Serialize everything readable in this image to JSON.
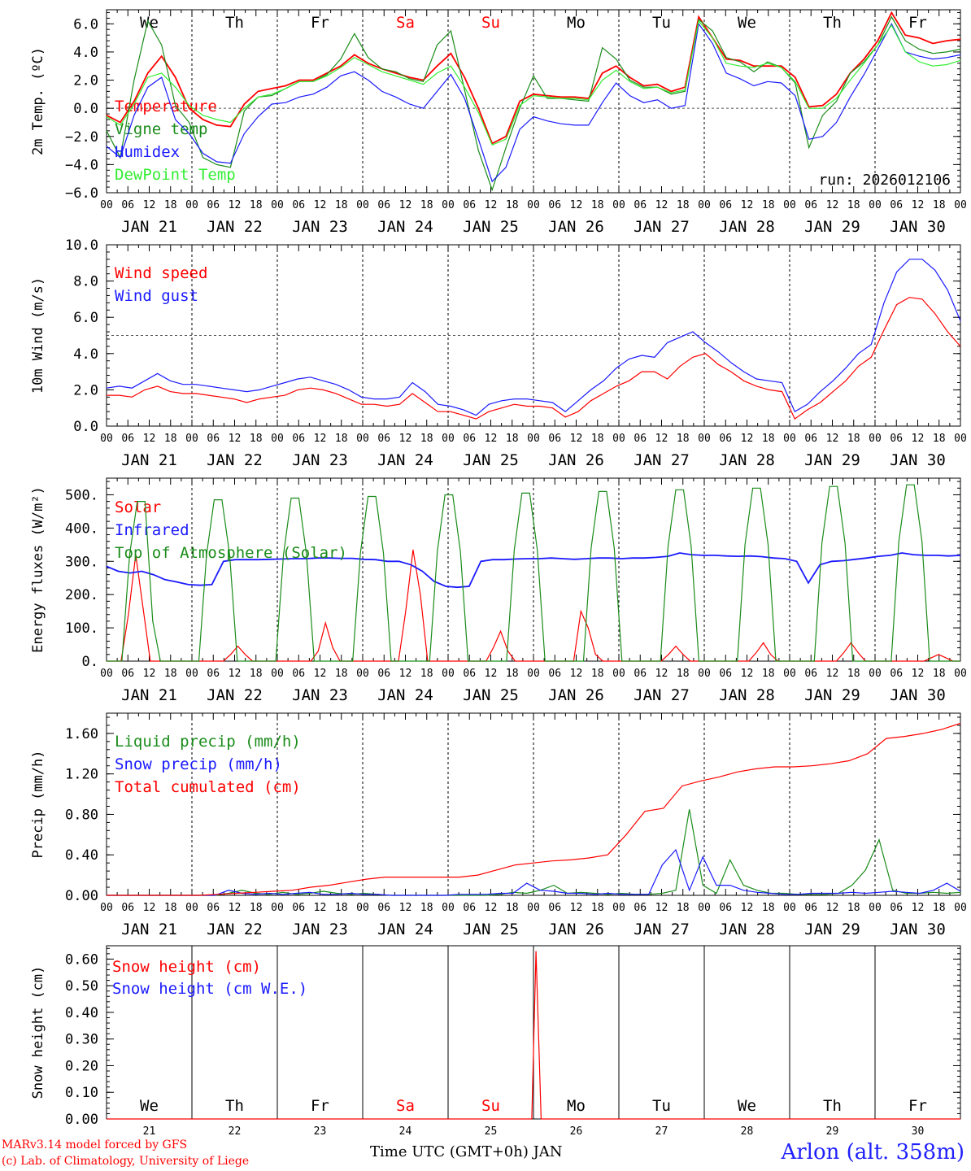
{
  "run_label": "run: 2026012106",
  "x_title": "Time UTC (GMT+0h) JAN",
  "credits": [
    "MARv3.14 model forced by GFS",
    "(c) Lab. of Climatology, University of Liege"
  ],
  "station": "Arlon (alt. 358m)",
  "days": [
    {
      "dow": "We",
      "date": "JAN 21",
      "num": "21",
      "weekend": false
    },
    {
      "dow": "Th",
      "date": "JAN 22",
      "num": "22",
      "weekend": false
    },
    {
      "dow": "Fr",
      "date": "JAN 23",
      "num": "23",
      "weekend": false
    },
    {
      "dow": "Sa",
      "date": "JAN 24",
      "num": "24",
      "weekend": true
    },
    {
      "dow": "Su",
      "date": "JAN 25",
      "num": "25",
      "weekend": true
    },
    {
      "dow": "Mo",
      "date": "JAN 26",
      "num": "26",
      "weekend": false
    },
    {
      "dow": "Tu",
      "date": "JAN 27",
      "num": "27",
      "weekend": false
    },
    {
      "dow": "We",
      "date": "JAN 28",
      "num": "28",
      "weekend": false
    },
    {
      "dow": "Th",
      "date": "JAN 29",
      "num": "29",
      "weekend": false
    },
    {
      "dow": "Fr",
      "date": "JAN 30",
      "num": "30",
      "weekend": false
    }
  ],
  "hour_ticks": [
    "00",
    "06",
    "12",
    "18"
  ],
  "colors": {
    "red": "#ff0000",
    "green": "#1a8c1a",
    "blue": "#1a1aff",
    "lightgreen": "#33ee33",
    "weekend": "#ff0000"
  },
  "chart_data": [
    {
      "type": "line",
      "id": "temp",
      "ylabel": "2m Temp. (ºC)",
      "ylim": [
        -6,
        7
      ],
      "yticks": [
        -6,
        -4,
        -2,
        0,
        2,
        4,
        6
      ],
      "ytick_labels": [
        "−6.0",
        "−4.0",
        "−2.0",
        "0.0",
        "2.0",
        "4.0",
        "6.0"
      ],
      "ref_line": 0,
      "x_hours_step": 6,
      "series": [
        {
          "name": "Temperature",
          "color": "red",
          "values": [
            -0.5,
            -1.0,
            0.5,
            2.5,
            3.7,
            2.2,
            0,
            -0.8,
            -1.2,
            -1.3,
            0.3,
            1.2,
            1.4,
            1.6,
            2.0,
            2.0,
            2.5,
            3.0,
            3.8,
            3.2,
            2.8,
            2.5,
            2.2,
            2.0,
            3.0,
            3.9,
            2.2,
            0.0,
            -2.5,
            -2.0,
            0.5,
            1.0,
            0.9,
            0.8,
            0.8,
            0.7,
            2.5,
            3.0,
            2.2,
            1.6,
            1.7,
            1.2,
            1.5,
            6.5,
            5.0,
            3.5,
            3.4,
            3.0,
            3.0,
            3.0,
            2.2,
            0.1,
            0.2,
            1.0,
            2.5,
            3.5,
            4.8,
            6.8,
            5.2,
            5.0,
            4.6,
            4.8,
            4.9
          ]
        },
        {
          "name": "Vigne temp",
          "color": "green",
          "values": [
            -1.6,
            -3.5,
            2.0,
            6.2,
            4.5,
            0.2,
            -1.0,
            -3.5,
            -4.0,
            -4.2,
            -0.2,
            0.8,
            0.9,
            1.4,
            1.9,
            1.9,
            2.4,
            3.5,
            5.3,
            3.6,
            2.8,
            2.6,
            2.1,
            1.9,
            4.5,
            5.5,
            1.3,
            -3.0,
            -5.8,
            -2.8,
            0.0,
            2.3,
            0.7,
            0.7,
            0.6,
            0.5,
            4.3,
            3.5,
            2.0,
            1.5,
            1.5,
            1.0,
            1.2,
            6.3,
            5.5,
            3.6,
            3.3,
            2.6,
            3.3,
            2.9,
            1.8,
            -2.8,
            -0.5,
            0.5,
            2.5,
            3.3,
            4.5,
            6.5,
            4.8,
            4.2,
            3.9,
            4.0,
            4.2
          ]
        },
        {
          "name": "Humidex",
          "color": "blue",
          "values": [
            -2.7,
            -3.5,
            -0.5,
            1.5,
            2.2,
            -0.8,
            -1.8,
            -3.2,
            -3.8,
            -3.9,
            -1.8,
            -0.6,
            0.3,
            0.4,
            0.8,
            1.0,
            1.5,
            2.3,
            2.6,
            2.0,
            1.2,
            0.8,
            0.3,
            0.0,
            1.2,
            2.4,
            0.7,
            -2.2,
            -5.2,
            -4.2,
            -1.5,
            -0.6,
            -0.9,
            -1.1,
            -1.2,
            -1.2,
            0.4,
            1.8,
            0.9,
            0.4,
            0.6,
            0.0,
            0.2,
            6.0,
            4.6,
            2.5,
            2.1,
            1.6,
            1.9,
            1.8,
            0.9,
            -2.2,
            -2.0,
            -1.0,
            0.8,
            2.4,
            4.2,
            6.0,
            4.0,
            3.7,
            3.5,
            3.6,
            3.8
          ]
        },
        {
          "name": "DewPoint Temp",
          "color": "lightgreen",
          "values": [
            -0.6,
            -1.2,
            0.3,
            2.2,
            2.5,
            1.5,
            0.2,
            -0.5,
            -0.8,
            -1.0,
            0.0,
            0.8,
            1.0,
            1.4,
            1.9,
            1.9,
            2.3,
            2.9,
            3.6,
            3.1,
            2.6,
            2.3,
            2.0,
            1.7,
            2.5,
            3.0,
            1.5,
            -0.3,
            -2.6,
            -2.2,
            0.2,
            0.9,
            0.8,
            0.7,
            0.7,
            0.6,
            2.0,
            2.7,
            1.9,
            1.4,
            1.5,
            1.1,
            1.3,
            6.2,
            5.0,
            3.2,
            3.0,
            2.9,
            3.2,
            2.9,
            1.9,
            0.0,
            0.0,
            0.7,
            2.0,
            3.2,
            4.5,
            5.9,
            4.0,
            3.3,
            3.0,
            3.1,
            3.4
          ]
        }
      ]
    },
    {
      "type": "line",
      "id": "wind",
      "ylabel": "10m Wind (m/s)",
      "ylim": [
        0,
        10
      ],
      "yticks": [
        0,
        2,
        4,
        6,
        8,
        10
      ],
      "ytick_labels": [
        "0.0",
        "2.0",
        "4.0",
        "6.0",
        "8.0",
        "10.0"
      ],
      "ref_line": 5,
      "x_hours_step": 6,
      "series": [
        {
          "name": "Wind speed",
          "color": "red",
          "values": [
            1.7,
            1.7,
            1.6,
            2.0,
            2.2,
            1.9,
            1.8,
            1.8,
            1.7,
            1.6,
            1.5,
            1.3,
            1.5,
            1.6,
            1.7,
            2.0,
            2.1,
            2.0,
            1.8,
            1.5,
            1.2,
            1.2,
            1.1,
            1.2,
            1.8,
            1.3,
            0.8,
            0.8,
            0.6,
            0.4,
            0.8,
            1.0,
            1.2,
            1.1,
            1.1,
            1.0,
            0.5,
            0.8,
            1.4,
            1.8,
            2.2,
            2.5,
            3.0,
            3.0,
            2.6,
            3.3,
            3.8,
            4.0,
            3.4,
            3.0,
            2.5,
            2.2,
            2.0,
            1.9,
            0.4,
            0.9,
            1.3,
            1.9,
            2.5,
            3.3,
            3.8,
            5.3,
            6.7,
            7.1,
            7.0,
            6.2,
            5.2,
            4.4
          ]
        },
        {
          "name": "Wind gust",
          "color": "blue",
          "values": [
            2.1,
            2.2,
            2.1,
            2.5,
            2.9,
            2.5,
            2.3,
            2.3,
            2.2,
            2.1,
            2.0,
            1.9,
            2.0,
            2.2,
            2.4,
            2.6,
            2.7,
            2.5,
            2.3,
            2.0,
            1.6,
            1.5,
            1.5,
            1.6,
            2.4,
            1.9,
            1.2,
            1.1,
            0.9,
            0.6,
            1.2,
            1.4,
            1.5,
            1.5,
            1.4,
            1.3,
            0.8,
            1.4,
            2.0,
            2.5,
            3.2,
            3.7,
            3.9,
            3.8,
            4.6,
            4.9,
            5.2,
            4.6,
            4.1,
            3.5,
            3.0,
            2.6,
            2.5,
            2.4,
            0.8,
            1.2,
            1.9,
            2.5,
            3.2,
            4.0,
            4.5,
            6.8,
            8.5,
            9.2,
            9.2,
            8.6,
            7.5,
            5.8
          ]
        }
      ]
    },
    {
      "type": "line",
      "id": "energy",
      "ylabel": "Energy fluxes (W/m²)",
      "ylim": [
        0,
        550
      ],
      "yticks": [
        0,
        100,
        200,
        300,
        400,
        500
      ],
      "ytick_labels": [
        "0.",
        "100.",
        "200.",
        "300.",
        "400.",
        "500."
      ],
      "x_hours_step": 3,
      "series": [
        {
          "name": "Solar",
          "color": "red",
          "values": [
            0,
            0,
            0,
            140,
            320,
            160,
            0,
            0,
            0,
            0,
            0,
            0,
            0,
            0,
            0,
            0,
            0,
            20,
            45,
            20,
            0,
            0,
            0,
            0,
            0,
            0,
            0,
            0,
            0,
            30,
            115,
            40,
            0,
            0,
            0,
            0,
            0,
            0,
            0,
            0,
            0,
            150,
            335,
            200,
            0,
            0,
            0,
            0,
            0,
            0,
            0,
            0,
            0,
            40,
            90,
            30,
            0,
            0,
            0,
            0,
            0,
            0,
            0,
            0,
            0,
            150,
            100,
            20,
            0,
            0,
            0,
            0,
            0,
            0,
            0,
            0,
            0,
            20,
            45,
            20,
            0,
            0,
            0,
            0,
            0,
            0,
            0,
            0,
            0,
            25,
            55,
            20,
            0,
            0,
            0,
            0,
            0,
            0,
            0,
            0,
            0,
            25,
            55,
            25,
            0,
            0,
            0,
            0,
            0,
            0,
            0,
            0,
            0,
            10,
            20,
            10,
            0,
            0
          ]
        },
        {
          "name": "Infrared",
          "color": "blue",
          "values": [
            285,
            270,
            265,
            270,
            260,
            245,
            238,
            230,
            228,
            230,
            300,
            305,
            305,
            305,
            306,
            307,
            308,
            308,
            310,
            310,
            309,
            309,
            306,
            305,
            300,
            300,
            290,
            270,
            240,
            225,
            222,
            225,
            300,
            305,
            305,
            307,
            308,
            308,
            310,
            308,
            306,
            308,
            310,
            310,
            308,
            310,
            310,
            312,
            315,
            325,
            320,
            318,
            318,
            316,
            315,
            316,
            314,
            310,
            308,
            300,
            235,
            290,
            300,
            302,
            306,
            310,
            315,
            318,
            325,
            320,
            318,
            318,
            316,
            318
          ]
        },
        {
          "name": "Top of Atmosphere (Solar)",
          "color": "green",
          "values": [
            0,
            0,
            0,
            320,
            480,
            480,
            120,
            0,
            0,
            0,
            0,
            0,
            0,
            320,
            485,
            485,
            320,
            0,
            0,
            0,
            0,
            0,
            0,
            320,
            490,
            490,
            320,
            0,
            0,
            0,
            0,
            0,
            0,
            325,
            495,
            495,
            325,
            0,
            0,
            0,
            0,
            0,
            0,
            330,
            500,
            500,
            330,
            0,
            0,
            0,
            0,
            0,
            0,
            335,
            505,
            505,
            335,
            0,
            0,
            0,
            0,
            0,
            0,
            340,
            510,
            510,
            340,
            0,
            0,
            0,
            0,
            0,
            0,
            345,
            515,
            515,
            345,
            0,
            0,
            0,
            0,
            0,
            0,
            350,
            520,
            520,
            350,
            0,
            0,
            0,
            0,
            0,
            0,
            355,
            525,
            525,
            355,
            0,
            0,
            0,
            0,
            0,
            0,
            360,
            530,
            530,
            360,
            0,
            0,
            0,
            0,
            0
          ]
        }
      ]
    },
    {
      "type": "line",
      "id": "precip",
      "ylabel": "Precip (mm/h)",
      "ylim": [
        0,
        1.8
      ],
      "yticks": [
        0,
        0.4,
        0.8,
        1.2,
        1.6
      ],
      "ytick_labels": [
        "0.00",
        "0.40",
        "0.80",
        "1.20",
        "1.60"
      ],
      "x_hours_step": 6,
      "series": [
        {
          "name": "Liquid precip (mm/h)",
          "color": "green",
          "values": [
            0,
            0,
            0,
            0,
            0,
            0,
            0,
            0,
            0,
            0.02,
            0.05,
            0.02,
            0.01,
            0.03,
            0.01,
            0.02,
            0.04,
            0.02,
            0.01,
            0.02,
            0.01,
            0,
            0,
            0,
            0,
            0,
            0,
            0,
            0,
            0.01,
            0.03,
            0.02,
            0.05,
            0.1,
            0.02,
            0.03,
            0.02,
            0.01,
            0.02,
            0.01,
            0.01,
            0.02,
            0.05,
            0.85,
            0.1,
            0.02,
            0.35,
            0.1,
            0.05,
            0.02,
            0.02,
            0.01,
            0.01,
            0.01,
            0.02,
            0.1,
            0.25,
            0.55,
            0.05,
            0.02,
            0.02,
            0.03,
            0.02,
            0.03
          ]
        },
        {
          "name": "Snow precip (mm/h)",
          "color": "blue",
          "values": [
            0,
            0,
            0,
            0,
            0,
            0,
            0,
            0,
            0,
            0.05,
            0.02,
            0.01,
            0.02,
            0.01,
            0.02,
            0.03,
            0.01,
            0.01,
            0.02,
            0.01,
            0.01,
            0,
            0,
            0,
            0,
            0,
            0.01,
            0.01,
            0.01,
            0.02,
            0.02,
            0.12,
            0.05,
            0.04,
            0.02,
            0.02,
            0.01,
            0.02,
            0.01,
            0.01,
            0.01,
            0.3,
            0.45,
            0.05,
            0.38,
            0.1,
            0.1,
            0.05,
            0.03,
            0.02,
            0.01,
            0.01,
            0.02,
            0.02,
            0.02,
            0.03,
            0.02,
            0.03,
            0.04,
            0.03,
            0.02,
            0.05,
            0.12,
            0.04
          ]
        },
        {
          "name": "Total cumulated (cm)",
          "color": "red",
          "values": [
            0,
            0,
            0,
            0,
            0,
            0,
            0.01,
            0.02,
            0.03,
            0.04,
            0.05,
            0.08,
            0.1,
            0.13,
            0.16,
            0.18,
            0.18,
            0.18,
            0.18,
            0.18,
            0.2,
            0.25,
            0.3,
            0.32,
            0.34,
            0.35,
            0.37,
            0.4,
            0.6,
            0.83,
            0.86,
            1.08,
            1.13,
            1.17,
            1.22,
            1.25,
            1.27,
            1.27,
            1.28,
            1.3,
            1.33,
            1.4,
            1.55,
            1.57,
            1.6,
            1.64,
            1.7
          ]
        }
      ]
    },
    {
      "type": "line",
      "id": "snow",
      "ylabel": "Snow height (cm)",
      "ylim": [
        0,
        0.65
      ],
      "yticks": [
        0,
        0.1,
        0.2,
        0.3,
        0.4,
        0.5,
        0.6
      ],
      "ytick_labels": [
        "0.00",
        "0.10",
        "0.20",
        "0.30",
        "0.40",
        "0.50",
        "0.60"
      ],
      "series": [
        {
          "name": "Snow height (cm)",
          "color": "red",
          "points": [
            [
              0,
              0
            ],
            [
              4.98,
              0
            ],
            [
              5.03,
              0.63
            ],
            [
              5.09,
              0
            ],
            [
              10,
              0
            ]
          ]
        },
        {
          "name": "Snow height (cm W.E.)",
          "color": "blue",
          "points": []
        }
      ]
    }
  ]
}
